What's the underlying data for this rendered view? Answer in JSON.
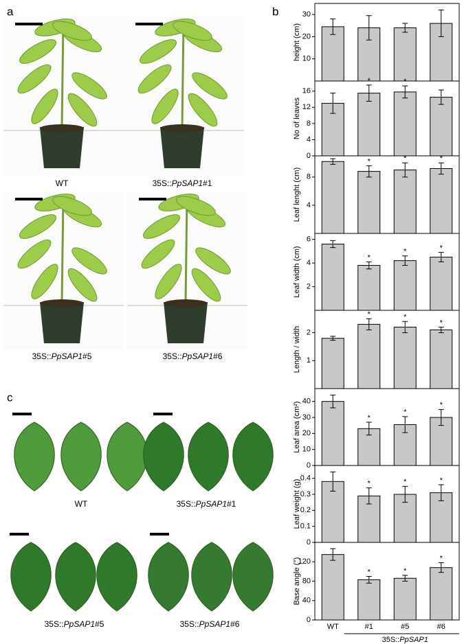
{
  "figure": {
    "panel_labels": [
      "a",
      "b",
      "c"
    ],
    "photo_captions": [
      {
        "prefix": "WT"
      },
      {
        "prefix": "35S::",
        "gene": "PpSAP1",
        "suffix": "#1"
      },
      {
        "prefix": "35S::",
        "gene": "PpSAP1",
        "suffix": "#5"
      },
      {
        "prefix": "35S::",
        "gene": "PpSAP1",
        "suffix": "#6"
      },
      {
        "prefix": "WT"
      },
      {
        "prefix": "35S::",
        "gene": "PpSAP1",
        "suffix": "#1"
      },
      {
        "prefix": "35S::",
        "gene": "PpSAP1",
        "suffix": "#5"
      },
      {
        "prefix": "35S::",
        "gene": "PpSAP1",
        "suffix": "#6"
      }
    ]
  },
  "chart_data": [
    {
      "type": "bar",
      "ylabel": "height (cm)",
      "values": [
        24.5,
        24,
        24,
        26
      ],
      "errors": [
        3.5,
        5.5,
        2,
        6
      ],
      "annotations": [
        null,
        null,
        null,
        null
      ],
      "ylim": [
        0,
        35
      ],
      "yticks": [
        10,
        20,
        30
      ],
      "color": "#c8c8c8"
    },
    {
      "type": "bar",
      "ylabel": "No of leaves",
      "values": [
        13,
        15.5,
        15.8,
        14.5
      ],
      "errors": [
        2.5,
        2,
        1.5,
        1.8
      ],
      "annotations": [
        null,
        "*",
        "*",
        null
      ],
      "ylim": [
        0,
        18.5
      ],
      "yticks": [
        0,
        4,
        8,
        12,
        16
      ],
      "color": "#c8c8c8"
    },
    {
      "type": "bar",
      "ylabel": "Leaf lenght (cm)",
      "values": [
        10.2,
        8.8,
        9,
        9.2
      ],
      "errors": [
        0.4,
        0.8,
        1,
        0.8
      ],
      "annotations": [
        null,
        "*",
        "*",
        "*"
      ],
      "ylim": [
        0,
        11
      ],
      "yticks": [
        4,
        8
      ],
      "color": "#c8c8c8"
    },
    {
      "type": "bar",
      "ylabel": "Leaf width (cm)",
      "values": [
        5.6,
        3.8,
        4.2,
        4.5
      ],
      "errors": [
        0.3,
        0.3,
        0.4,
        0.4
      ],
      "annotations": [
        null,
        "*",
        "*",
        "*"
      ],
      "ylim": [
        0,
        6.5
      ],
      "yticks": [
        2,
        4,
        6
      ],
      "color": "#c8c8c8"
    },
    {
      "type": "bar",
      "ylabel": "Length / width",
      "values": [
        1.8,
        2.3,
        2.2,
        2.1
      ],
      "errors": [
        0.07,
        0.2,
        0.2,
        0.1
      ],
      "annotations": [
        null,
        "*",
        "*",
        "*"
      ],
      "ylim": [
        0,
        2.8
      ],
      "yticks": [
        1,
        2
      ],
      "color": "#c8c8c8"
    },
    {
      "type": "bar",
      "ylabel": "Leaf area (cm²)",
      "values": [
        40,
        23,
        25.5,
        30
      ],
      "errors": [
        4,
        4,
        5,
        5
      ],
      "annotations": [
        null,
        "*",
        "*",
        "*"
      ],
      "ylim": [
        0,
        48
      ],
      "yticks": [
        0,
        10,
        20,
        30,
        40
      ],
      "color": "#c8c8c8"
    },
    {
      "type": "bar",
      "ylabel": "Leaf weight (g)",
      "values": [
        0.38,
        0.29,
        0.3,
        0.31
      ],
      "errors": [
        0.06,
        0.05,
        0.05,
        0.05
      ],
      "annotations": [
        null,
        "*",
        "*",
        "*"
      ],
      "ylim": [
        0,
        0.48
      ],
      "yticks": [
        0,
        0.1,
        0.2,
        0.3,
        0.4
      ],
      "color": "#c8c8c8"
    },
    {
      "type": "bar",
      "ylabel": "Base angle (°)",
      "values": [
        135,
        83,
        86,
        108
      ],
      "errors": [
        12,
        7,
        6,
        10
      ],
      "annotations": [
        null,
        "*",
        "*",
        "*"
      ],
      "ylim": [
        0,
        160
      ],
      "yticks": [
        0,
        40,
        80,
        120
      ],
      "color": "#c8c8c8",
      "categories": [
        "WT",
        "#1",
        "#5",
        "#6"
      ],
      "category_group": {
        "prefix": "35S::",
        "gene": "PpSAP1"
      }
    }
  ]
}
